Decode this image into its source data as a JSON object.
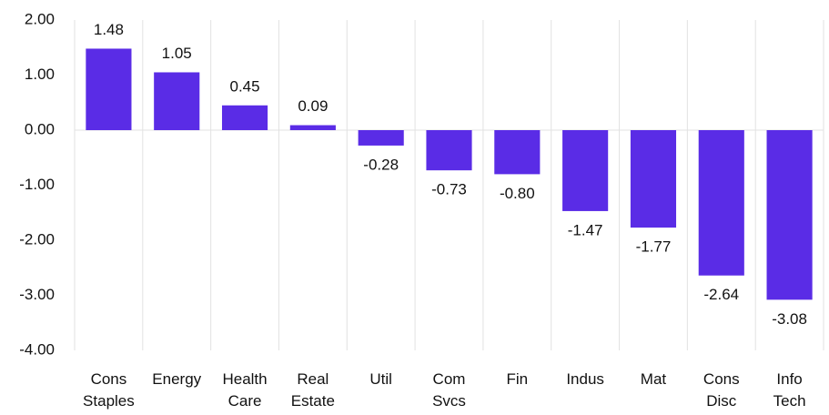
{
  "chart_data": {
    "type": "bar",
    "categories": [
      "Cons Staples",
      "Energy",
      "Health Care",
      "Real Estate",
      "Util",
      "Com Svcs",
      "Fin",
      "Indus",
      "Mat",
      "Cons Disc",
      "Info Tech"
    ],
    "values": [
      1.48,
      1.05,
      0.45,
      0.09,
      -0.28,
      -0.73,
      -0.8,
      -1.47,
      -1.77,
      -2.64,
      -3.08
    ],
    "value_labels": [
      "1.48",
      "1.05",
      "0.45",
      "0.09",
      "-0.28",
      "-0.73",
      "-0.80",
      "-1.47",
      "-1.77",
      "-2.64",
      "-3.08"
    ],
    "color": "#5a2ce6",
    "ylim": [
      -4,
      2
    ],
    "yticks": [
      {
        "value": -4,
        "label": "-4.00"
      },
      {
        "value": -3,
        "label": "-3.00"
      },
      {
        "value": -2,
        "label": "-2.00"
      },
      {
        "value": -1,
        "label": "-1.00"
      },
      {
        "value": 0,
        "label": "0.00"
      },
      {
        "value": 1,
        "label": "1.00"
      },
      {
        "value": 2,
        "label": "2.00"
      }
    ],
    "grid": true
  }
}
